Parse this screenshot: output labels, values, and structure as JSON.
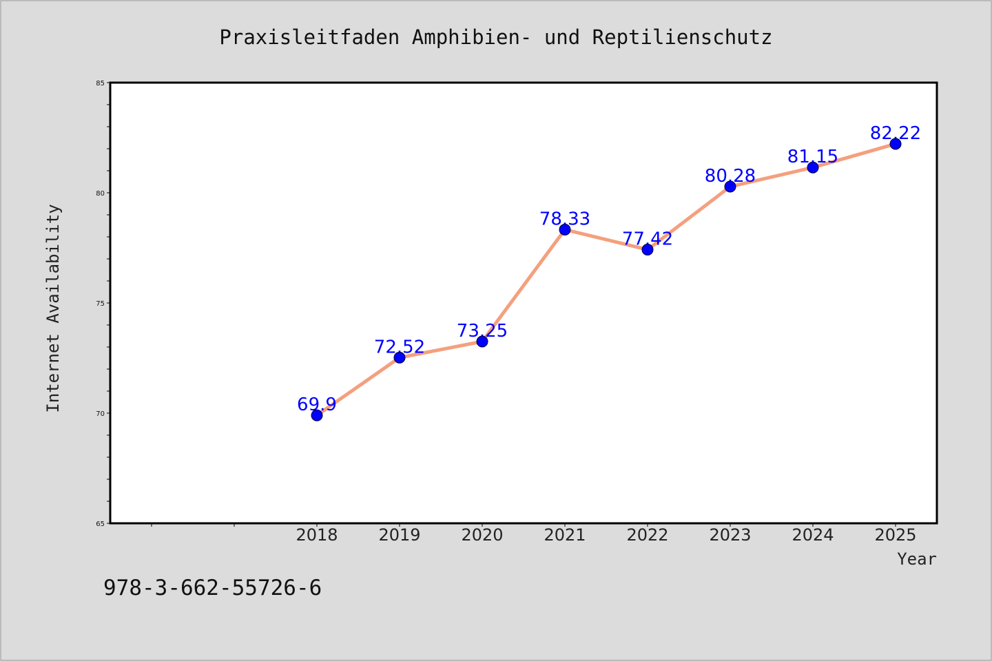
{
  "chart_data": {
    "type": "line",
    "title": "Praxisleitfaden Amphibien- und Reptilienschutz",
    "xlabel": "Year",
    "ylabel": "Internet Availability",
    "categories": [
      "2018",
      "2019",
      "2020",
      "2021",
      "2022",
      "2023",
      "2024",
      "2025"
    ],
    "values": [
      69.9,
      72.52,
      73.25,
      78.33,
      77.42,
      80.28,
      81.15,
      82.22
    ],
    "value_labels": [
      "69.9",
      "72.52",
      "73.25",
      "78.33",
      "77.42",
      "80.28",
      "81.15",
      "82.22"
    ],
    "ylim": [
      65,
      85
    ],
    "yticks": [
      "65",
      "70",
      "75",
      "80",
      "85"
    ],
    "grid": false,
    "colors": {
      "line": "#f4a07e",
      "marker": "#0000ff",
      "data_label": "#0000ff",
      "background": "#dcdcdc",
      "plot_background": "#ffffff"
    }
  },
  "footer": {
    "isbn": "978-3-662-55726-6"
  }
}
